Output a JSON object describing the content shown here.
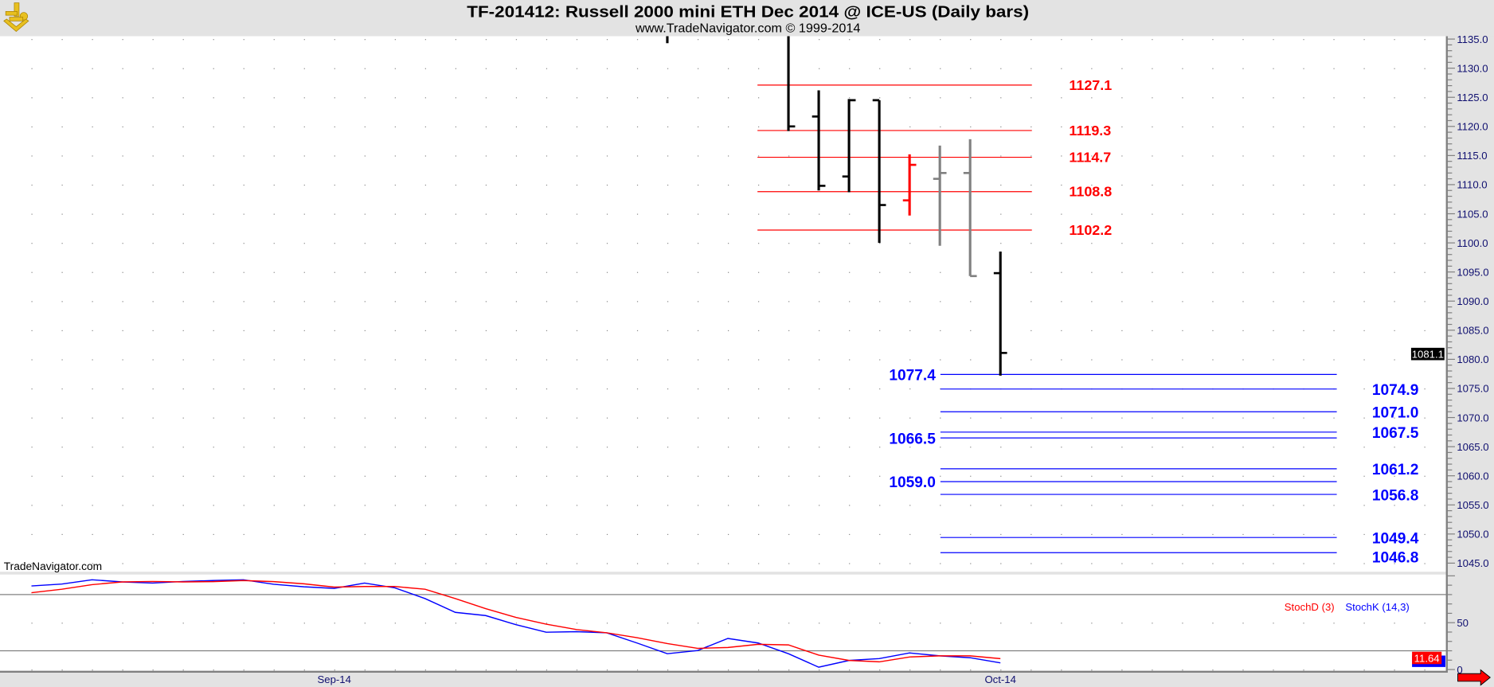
{
  "header": {
    "title": "TF-201412:  Russell 2000 mini ETH Dec 2014 @ ICE-US  (Daily bars)",
    "subtitle": "www.TradeNavigator.com © 1999-2014",
    "logo_icon": "sextant-logo-icon"
  },
  "watermark": "TradeNavigator.com",
  "colors": {
    "up_bar": "#000000",
    "down_bar": "#000000",
    "highlight_bar": "#ff0000",
    "inside_bar": "#808080",
    "resistance": "#ff0000",
    "support": "#0000ff",
    "stochD": "#ff0000",
    "stochK": "#0000ff",
    "background": "#ffffff",
    "chrome": "#e3e3e3",
    "axis_text": "#101070"
  },
  "chart_data": [
    {
      "type": "ohlc",
      "ylim": [
        1045,
        1135
      ],
      "y_tick_step": 5,
      "y_ticks": [
        "1135.0",
        "1130.0",
        "1125.0",
        "1120.0",
        "1115.0",
        "1110.0",
        "1105.0",
        "1100.0",
        "1095.0",
        "1090.0",
        "1085.0",
        "1080.0",
        "1075.0",
        "1070.0",
        "1065.0",
        "1060.0",
        "1055.0",
        "1050.0",
        "1045.0"
      ],
      "x_labels": [
        {
          "label": "Sep-14",
          "bar": 10
        },
        {
          "label": "Oct-14",
          "bar": 32
        }
      ],
      "bars": [
        {
          "bar": 21,
          "open": null,
          "high": 1140,
          "low": 1134.3,
          "close": null,
          "color": "#000000"
        },
        {
          "bar": 25,
          "open": null,
          "high": 1140,
          "low": 1119.2,
          "close": 1120.0,
          "color": "#000000"
        },
        {
          "bar": 26,
          "open": 1121.7,
          "high": 1126.2,
          "low": 1109.0,
          "close": 1109.8,
          "color": "#000000"
        },
        {
          "bar": 27,
          "open": 1111.4,
          "high": 1124.7,
          "low": 1108.7,
          "close": 1124.5,
          "color": "#000000"
        },
        {
          "bar": 28,
          "open": 1124.5,
          "high": 1124.5,
          "low": 1100.0,
          "close": 1106.5,
          "color": "#000000"
        },
        {
          "bar": 29,
          "open": 1107.3,
          "high": 1115.2,
          "low": 1104.7,
          "close": 1113.4,
          "color": "#ff0000"
        },
        {
          "bar": 30,
          "open": 1111.0,
          "high": 1116.7,
          "low": 1099.5,
          "close": 1112.0,
          "color": "#808080"
        },
        {
          "bar": 31,
          "open": 1112.0,
          "high": 1117.8,
          "low": 1094.3,
          "close": 1094.3,
          "color": "#808080"
        },
        {
          "bar": 32,
          "open": 1094.8,
          "high": 1098.5,
          "low": 1077.2,
          "close": 1081.1,
          "color": "#000000"
        }
      ],
      "last_price": "1081.1",
      "resistance_levels": [
        {
          "value": 1127.1,
          "label": "1127.1"
        },
        {
          "value": 1119.3,
          "label": "1119.3"
        },
        {
          "value": 1114.7,
          "label": "1114.7"
        },
        {
          "value": 1108.8,
          "label": "1108.8"
        },
        {
          "value": 1102.2,
          "label": "1102.2"
        }
      ],
      "support_levels": [
        {
          "value": 1077.4,
          "label": "1077.4",
          "side": "left"
        },
        {
          "value": 1074.9,
          "label": "1074.9",
          "side": "right"
        },
        {
          "value": 1071.0,
          "label": "1071.0",
          "side": "right"
        },
        {
          "value": 1067.5,
          "label": "1067.5",
          "side": "right"
        },
        {
          "value": 1066.5,
          "label": "1066.5",
          "side": "left"
        },
        {
          "value": 1061.2,
          "label": "1061.2",
          "side": "right"
        },
        {
          "value": 1059.0,
          "label": "1059.0",
          "side": "left"
        },
        {
          "value": 1056.8,
          "label": "1056.8",
          "side": "right"
        },
        {
          "value": 1049.4,
          "label": "1049.4",
          "side": "right"
        },
        {
          "value": 1046.8,
          "label": "1046.8",
          "side": "right"
        }
      ]
    },
    {
      "type": "line",
      "ylim": [
        0,
        100
      ],
      "y_ticks": [
        "50",
        "0"
      ],
      "reference_lines": [
        80,
        20
      ],
      "legend": [
        "StochD (3)",
        "StochK (14,3)"
      ],
      "legend_placement": "top-right",
      "series": [
        {
          "name": "StochK (14,3)",
          "color": "#0000ff",
          "values": [
            89.2,
            91.2,
            95.8,
            93.5,
            92.3,
            94.0,
            95.0,
            95.8,
            91.0,
            88.3,
            86.6,
            92.3,
            87.2,
            75.7,
            61.0,
            57.6,
            47.9,
            39.8,
            40.4,
            39.2,
            28.3,
            16.9,
            20.3,
            33.2,
            28.3,
            16.9,
            2.5,
            9.7,
            11.7,
            17.7,
            14.6,
            12.6,
            7.1
          ]
        },
        {
          "name": "StochD (3)",
          "color": "#ff0000",
          "values": [
            82.0,
            85.7,
            90.6,
            93.5,
            94.0,
            93.5,
            93.8,
            95.0,
            93.8,
            91.5,
            88.0,
            88.6,
            88.6,
            85.7,
            75.7,
            65.0,
            55.6,
            48.4,
            42.7,
            39.2,
            34.0,
            27.7,
            22.6,
            23.5,
            26.9,
            26.3,
            15.4,
            9.7,
            8.2,
            13.4,
            14.6,
            14.6,
            11.64
          ]
        }
      ],
      "last_value_label": "11.64"
    }
  ],
  "scroll_right_icon": "red-arrow-right-icon"
}
